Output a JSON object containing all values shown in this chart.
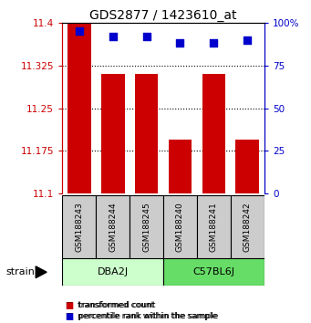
{
  "title": "GDS2877 / 1423610_at",
  "samples": [
    "GSM188243",
    "GSM188244",
    "GSM188245",
    "GSM188240",
    "GSM188241",
    "GSM188242"
  ],
  "group_labels": [
    "DBA2J",
    "C57BL6J"
  ],
  "group_colors": [
    "#ccffcc",
    "#66dd66"
  ],
  "red_values": [
    11.4,
    11.31,
    11.31,
    11.195,
    11.31,
    11.195
  ],
  "blue_values": [
    95,
    92,
    92,
    88,
    88,
    90
  ],
  "ymin": 11.1,
  "ymax": 11.4,
  "yticks": [
    11.1,
    11.175,
    11.25,
    11.325,
    11.4
  ],
  "ytick_labels": [
    "11.1",
    "11.175",
    "11.25",
    "11.325",
    "11.4"
  ],
  "right_yticks": [
    0,
    25,
    50,
    75,
    100
  ],
  "right_ytick_labels": [
    "0",
    "25",
    "50",
    "75",
    "100%"
  ],
  "left_axis_color": "#cc0000",
  "right_axis_color": "#0000cc",
  "bar_color": "#cc0000",
  "dot_color": "#0000cc",
  "sample_box_color": "#cccccc",
  "legend_red": "transformed count",
  "legend_blue": "percentile rank within the sample",
  "bar_width": 0.7,
  "dot_size": 30,
  "title_fontsize": 10,
  "tick_fontsize": 7.5,
  "label_fontsize": 8,
  "sample_fontsize": 6.5
}
